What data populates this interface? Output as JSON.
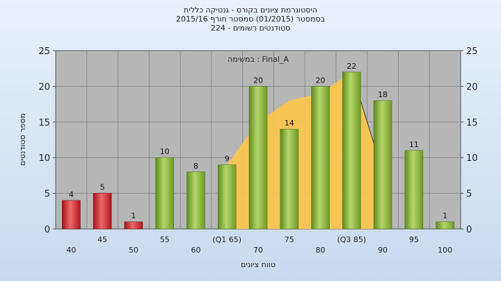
{
  "chart_data": {
    "type": "bar",
    "title_lines": [
      "היסטוגרמת ציונים בקורס - גנטיקה כללית",
      "בסמסטר  (01/2015)  סמסטר חורף 2015/16",
      "סטודנטים רשומים - 224"
    ],
    "annotation": "במשימה : Final_A",
    "xlabel": "טווח ציונים",
    "ylabel": "מספר סטודנטים",
    "categories": [
      "40",
      "45",
      "50",
      "55",
      "60",
      "(Q1 65)",
      "70",
      "75",
      "80",
      "(Q3 85)",
      "90",
      "95",
      "100"
    ],
    "values": [
      4,
      5,
      1,
      10,
      8,
      9,
      20,
      14,
      20,
      22,
      18,
      11,
      1
    ],
    "bar_colors": [
      "#c8202a",
      "#c8202a",
      "#c8202a",
      "#7aa62e",
      "#7aa62e",
      "#7aa62e",
      "#7aa62e",
      "#7aa62e",
      "#7aa62e",
      "#7aa62e",
      "#7aa62e",
      "#7aa62e",
      "#7aa62e"
    ],
    "ylim": [
      0,
      25
    ],
    "yticks": [
      0,
      5,
      10,
      15,
      20,
      25
    ],
    "grid": true,
    "area_series": {
      "color": "#ffc84a",
      "x_categories": [
        "(Q1 65)",
        "70",
        "75",
        "80",
        "(Q3 85)",
        "90"
      ],
      "values": [
        9,
        15,
        18,
        19,
        22,
        8
      ]
    }
  }
}
